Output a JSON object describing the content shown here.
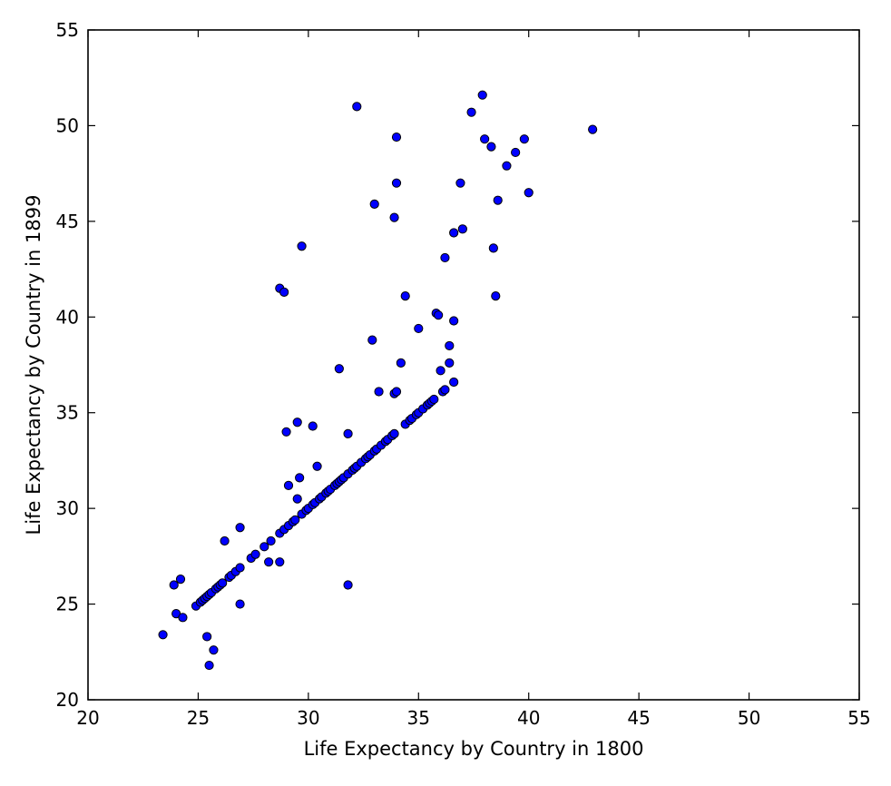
{
  "chart_data": {
    "type": "scatter",
    "title": "",
    "xlabel": "Life Expectancy by Country in 1800",
    "ylabel": "Life Expectancy by Country in 1899",
    "xlim": [
      20,
      55
    ],
    "ylim": [
      20,
      55
    ],
    "xticks": [
      20,
      25,
      30,
      35,
      40,
      45,
      50,
      55
    ],
    "yticks": [
      20,
      25,
      30,
      35,
      40,
      45,
      50,
      55
    ],
    "grid": false,
    "marker_color": "#0000ff",
    "marker_edge_color": "#000000",
    "points": [
      [
        23.4,
        23.4
      ],
      [
        23.9,
        26.0
      ],
      [
        24.0,
        24.5
      ],
      [
        24.2,
        26.3
      ],
      [
        24.3,
        24.3
      ],
      [
        24.9,
        24.9
      ],
      [
        25.1,
        25.1
      ],
      [
        25.2,
        25.2
      ],
      [
        25.3,
        25.3
      ],
      [
        25.4,
        25.4
      ],
      [
        25.4,
        23.3
      ],
      [
        25.5,
        21.8
      ],
      [
        25.5,
        25.5
      ],
      [
        25.6,
        25.6
      ],
      [
        25.7,
        22.6
      ],
      [
        25.8,
        25.8
      ],
      [
        25.9,
        25.9
      ],
      [
        26.0,
        26.0
      ],
      [
        26.1,
        26.1
      ],
      [
        26.2,
        28.3
      ],
      [
        26.4,
        26.4
      ],
      [
        26.5,
        26.5
      ],
      [
        26.7,
        26.7
      ],
      [
        26.9,
        25.0
      ],
      [
        26.9,
        29.0
      ],
      [
        26.9,
        26.9
      ],
      [
        27.4,
        27.4
      ],
      [
        27.6,
        27.6
      ],
      [
        28.0,
        28.0
      ],
      [
        28.2,
        27.2
      ],
      [
        28.3,
        28.3
      ],
      [
        28.7,
        27.2
      ],
      [
        28.7,
        41.5
      ],
      [
        28.7,
        28.7
      ],
      [
        28.9,
        41.3
      ],
      [
        28.9,
        28.9
      ],
      [
        29.0,
        34.0
      ],
      [
        29.1,
        29.1
      ],
      [
        29.1,
        31.2
      ],
      [
        29.3,
        29.3
      ],
      [
        29.4,
        29.4
      ],
      [
        29.5,
        30.5
      ],
      [
        29.5,
        34.5
      ],
      [
        29.6,
        31.6
      ],
      [
        29.7,
        43.7
      ],
      [
        29.7,
        29.7
      ],
      [
        29.9,
        29.9
      ],
      [
        30.0,
        30.0
      ],
      [
        30.2,
        34.3
      ],
      [
        30.2,
        30.2
      ],
      [
        30.3,
        30.3
      ],
      [
        30.4,
        32.2
      ],
      [
        30.5,
        30.5
      ],
      [
        30.6,
        30.6
      ],
      [
        30.8,
        30.8
      ],
      [
        30.9,
        30.9
      ],
      [
        31.0,
        31.0
      ],
      [
        31.2,
        31.2
      ],
      [
        31.3,
        31.3
      ],
      [
        31.4,
        37.3
      ],
      [
        31.4,
        31.4
      ],
      [
        31.5,
        31.5
      ],
      [
        31.6,
        31.6
      ],
      [
        31.8,
        26.0
      ],
      [
        31.8,
        31.8
      ],
      [
        31.8,
        33.9
      ],
      [
        32.0,
        32.0
      ],
      [
        32.1,
        32.1
      ],
      [
        32.2,
        51.0
      ],
      [
        32.2,
        32.2
      ],
      [
        32.4,
        32.4
      ],
      [
        32.6,
        32.6
      ],
      [
        32.7,
        32.7
      ],
      [
        32.8,
        32.8
      ],
      [
        32.9,
        38.8
      ],
      [
        33.0,
        45.9
      ],
      [
        33.0,
        33.0
      ],
      [
        33.1,
        33.1
      ],
      [
        33.2,
        36.1
      ],
      [
        33.3,
        33.3
      ],
      [
        33.5,
        33.5
      ],
      [
        33.6,
        33.6
      ],
      [
        33.8,
        33.8
      ],
      [
        33.9,
        33.9
      ],
      [
        33.9,
        36.0
      ],
      [
        33.9,
        45.2
      ],
      [
        34.0,
        36.1
      ],
      [
        34.0,
        47.0
      ],
      [
        34.0,
        49.4
      ],
      [
        34.2,
        37.6
      ],
      [
        34.4,
        41.1
      ],
      [
        34.4,
        34.4
      ],
      [
        34.6,
        34.6
      ],
      [
        34.7,
        34.7
      ],
      [
        34.9,
        34.9
      ],
      [
        35.0,
        39.4
      ],
      [
        35.0,
        35.0
      ],
      [
        35.2,
        35.2
      ],
      [
        35.4,
        35.4
      ],
      [
        35.5,
        35.5
      ],
      [
        35.6,
        35.6
      ],
      [
        35.7,
        35.7
      ],
      [
        35.8,
        40.2
      ],
      [
        35.9,
        40.1
      ],
      [
        36.0,
        37.2
      ],
      [
        36.1,
        36.1
      ],
      [
        36.2,
        43.1
      ],
      [
        36.2,
        36.2
      ],
      [
        36.4,
        38.5
      ],
      [
        36.4,
        37.6
      ],
      [
        36.6,
        36.6
      ],
      [
        36.6,
        39.8
      ],
      [
        36.6,
        44.4
      ],
      [
        36.9,
        47.0
      ],
      [
        37.0,
        44.6
      ],
      [
        37.4,
        50.7
      ],
      [
        37.9,
        51.6
      ],
      [
        38.0,
        49.3
      ],
      [
        38.3,
        48.9
      ],
      [
        38.4,
        43.6
      ],
      [
        38.5,
        41.1
      ],
      [
        38.6,
        46.1
      ],
      [
        39.0,
        47.9
      ],
      [
        39.4,
        48.6
      ],
      [
        39.8,
        49.3
      ],
      [
        40.0,
        46.5
      ],
      [
        42.9,
        49.8
      ]
    ]
  }
}
